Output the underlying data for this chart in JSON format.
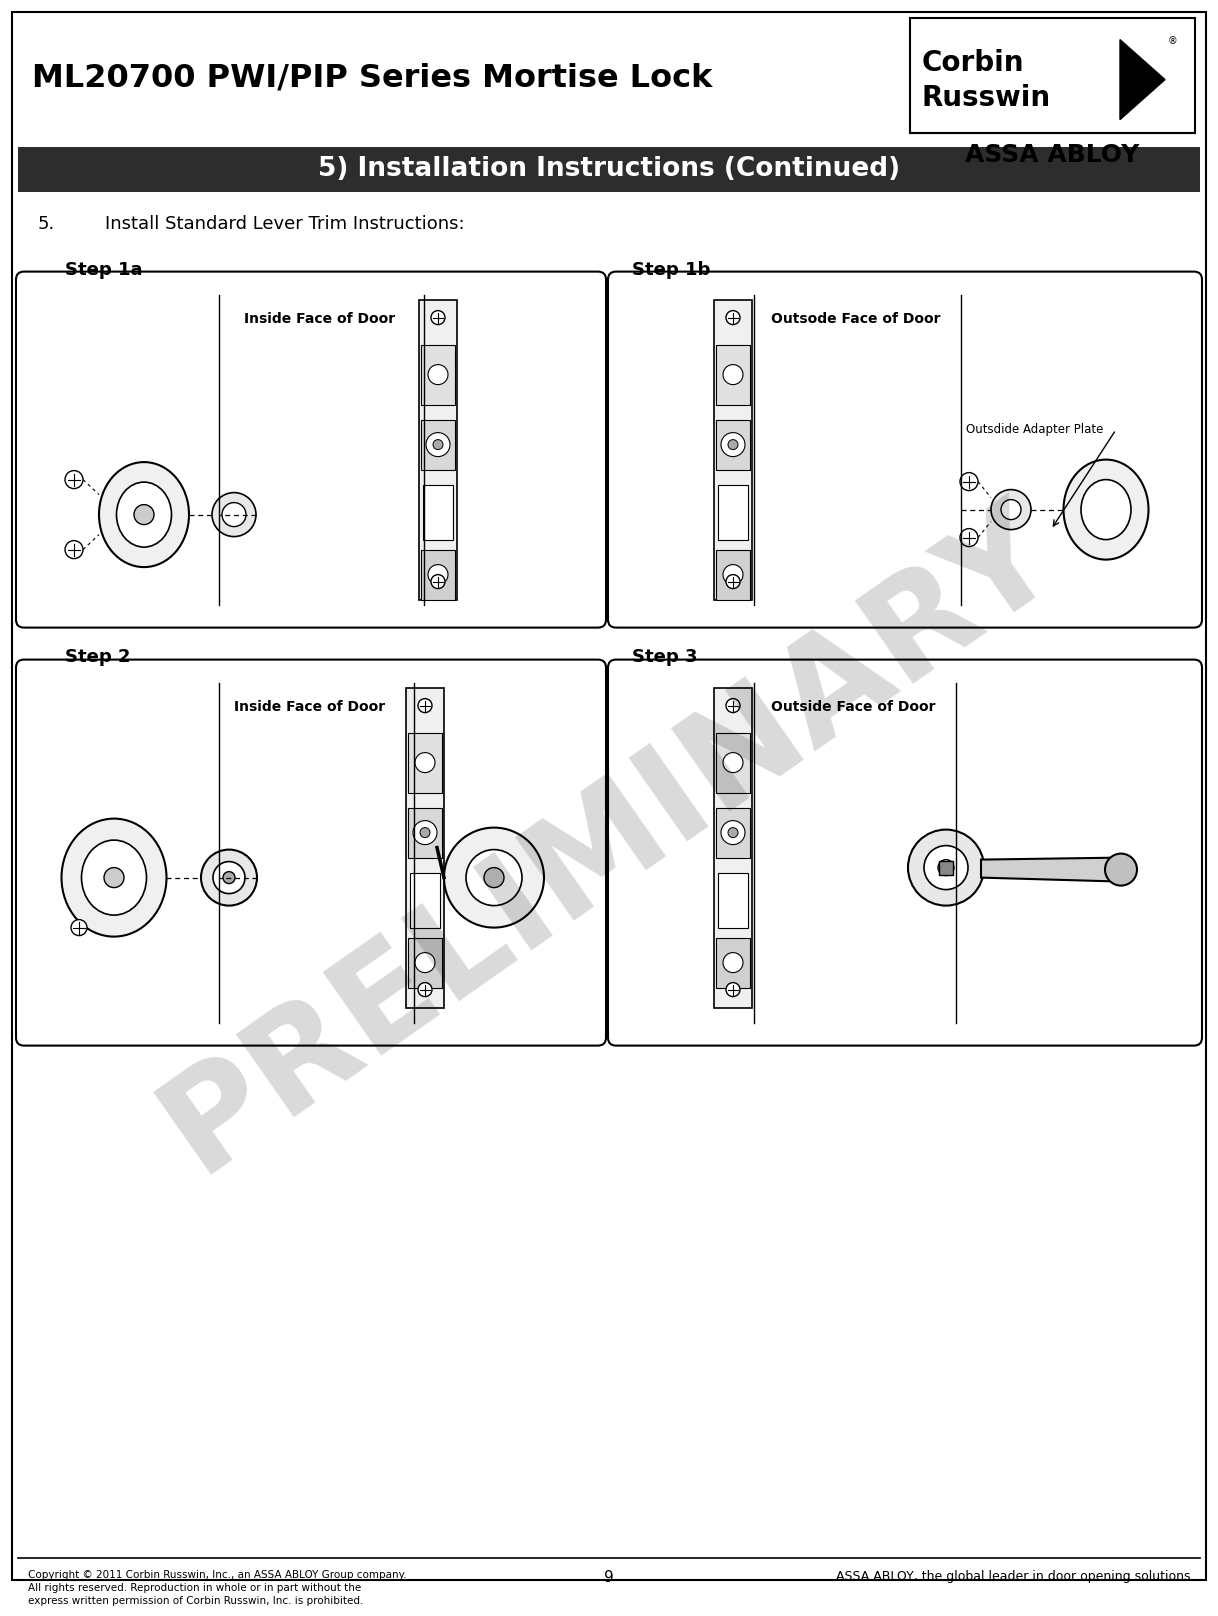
{
  "title": "ML20700 PWI/PIP Series Mortise Lock",
  "section_title": "5) Installation Instructions (Continued)",
  "step_number": "5.",
  "step_text": "Install Standard Lever Trim Instructions:",
  "step1a_label": "Step 1a",
  "step1b_label": "Step 1b",
  "step2_label": "Step 2",
  "step3_label": "Step 3",
  "inside_face_label": "Inside Face of Door",
  "outside_face_label1b": "Outsode Face of Door",
  "outside_face_label3": "Outside Face of Door",
  "adapter_plate_label": "Outsdide Adapter Plate",
  "preliminary_text": "PRELIMINARY",
  "page_number": "9",
  "copyright_text": "Copyright © 2011 Corbin Russwin, Inc., an ASSA ABLOY Group company.\nAll rights reserved. Reproduction in whole or in part without the\nexpress written permission of Corbin Russwin, Inc. is prohibited.",
  "footer_right": "ASSA ABLOY, the global leader in door opening solutions",
  "corbin_line1": "Corbin",
  "corbin_line2": "Russwin",
  "assa_abloy": "ASSA ABLOY",
  "bg_color": "#ffffff",
  "section_bg": "#2d2d2d",
  "section_fg": "#ffffff",
  "box_border": "#000000",
  "line_color": "#000000",
  "fig_w": 11.98,
  "fig_h": 15.72,
  "dpi": 100
}
